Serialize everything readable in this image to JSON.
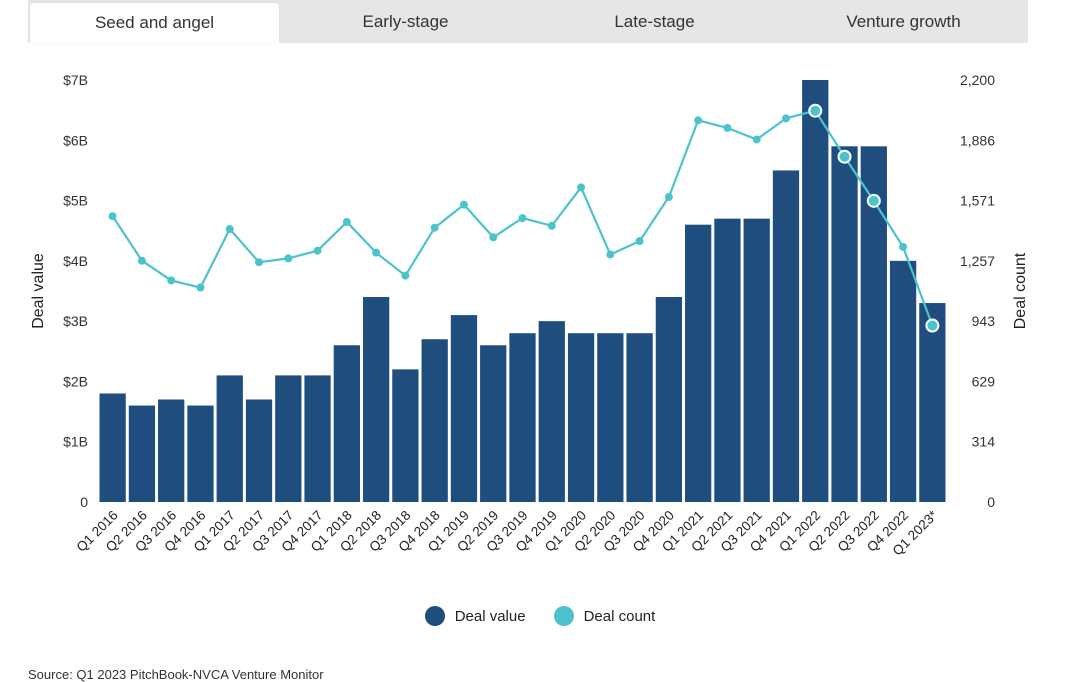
{
  "tabs": [
    {
      "label": "Seed and angel",
      "active": true
    },
    {
      "label": "Early-stage",
      "active": false
    },
    {
      "label": "Late-stage",
      "active": false
    },
    {
      "label": "Venture growth",
      "active": false
    }
  ],
  "colors": {
    "bar": "#1f4e7e",
    "line": "#4cc3cc",
    "axis_text": "#333333"
  },
  "chart_data": {
    "type": "bar",
    "categories": [
      "Q1 2016",
      "Q2 2016",
      "Q3 2016",
      "Q4 2016",
      "Q1 2017",
      "Q2 2017",
      "Q3 2017",
      "Q4 2017",
      "Q1 2018",
      "Q2 2018",
      "Q3 2018",
      "Q4 2018",
      "Q1 2019",
      "Q2 2019",
      "Q3 2019",
      "Q4 2019",
      "Q1 2020",
      "Q2 2020",
      "Q3 2020",
      "Q4 2020",
      "Q1 2021",
      "Q2 2021",
      "Q3 2021",
      "Q4 2021",
      "Q1 2022",
      "Q2 2022",
      "Q3 2022",
      "Q4 2022",
      "Q1 2023*"
    ],
    "series": [
      {
        "name": "Deal value",
        "axis": "left",
        "kind": "bar",
        "values": [
          1.8,
          1.6,
          1.7,
          1.6,
          2.1,
          1.7,
          2.1,
          2.1,
          2.6,
          3.4,
          2.2,
          2.7,
          3.1,
          2.6,
          2.8,
          3.0,
          2.8,
          2.8,
          2.8,
          3.4,
          4.6,
          4.7,
          4.7,
          5.5,
          7.0,
          5.9,
          5.9,
          4.0,
          3.3
        ]
      },
      {
        "name": "Deal count",
        "axis": "right",
        "kind": "line",
        "values": [
          1490,
          1258,
          1155,
          1118,
          1423,
          1250,
          1270,
          1310,
          1460,
          1300,
          1180,
          1430,
          1550,
          1380,
          1480,
          1440,
          1640,
          1290,
          1360,
          1590,
          1990,
          1950,
          1890,
          2000,
          2040,
          1800,
          1570,
          1330,
          920
        ],
        "highlighted_points": [
          24,
          25,
          26,
          28
        ]
      }
    ],
    "y_left": {
      "label": "Deal value",
      "ylim": [
        0,
        7
      ],
      "ticks": [
        "0",
        "$1B",
        "$2B",
        "$3B",
        "$4B",
        "$5B",
        "$6B",
        "$7B"
      ]
    },
    "y_right": {
      "label": "Deal count",
      "ylim": [
        0,
        2200
      ],
      "ticks": [
        "0",
        "314",
        "629",
        "943",
        "1,257",
        "1,571",
        "1,886",
        "2,200"
      ]
    },
    "legend": [
      "Deal value",
      "Deal count"
    ],
    "legend_position": "bottom-center"
  },
  "source": "Source: Q1 2023 PitchBook-NVCA Venture Monitor"
}
